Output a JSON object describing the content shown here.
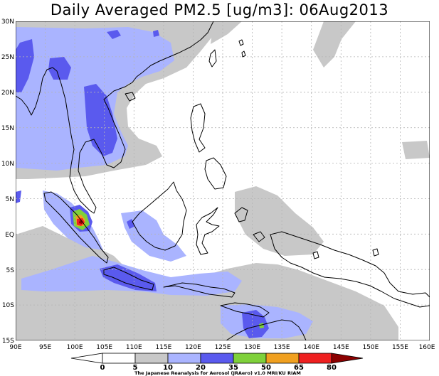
{
  "title": "Daily Averaged PM2.5 [ug/m3]: 06Aug2013",
  "credit": "The Japanese Reanalysis for Aerosol (JRAero) v1.0 MRI/KU RIAM",
  "lat_labels": [
    "30N",
    "25N",
    "20N",
    "15N",
    "10N",
    "5N",
    "EQ",
    "5S",
    "10S",
    "15S"
  ],
  "lon_labels": [
    "90E",
    "95E",
    "100E",
    "105E",
    "110E",
    "115E",
    "120E",
    "125E",
    "130E",
    "135E",
    "140E",
    "145E",
    "150E",
    "155E",
    "160E"
  ],
  "colorbar": {
    "levels": [
      "0",
      "5",
      "10",
      "20",
      "35",
      "50",
      "65",
      "80"
    ],
    "colors": [
      "#ffffff",
      "#ffffff",
      "#c8c8c8",
      "#aab4ff",
      "#5a5aee",
      "#7fd13b",
      "#f0a020",
      "#ee2020",
      "#8b0000"
    ]
  },
  "colors": {
    "land_line": "#000000",
    "grid": "#b4b4b4",
    "level_5_10": "#c8c8c8",
    "level_10_20": "#aab4ff",
    "level_20_35": "#5a5aee",
    "level_35_50": "#7fd13b",
    "level_50_65": "#f0a020",
    "level_65_80": "#ee2020",
    "level_80_plus": "#8b0000"
  },
  "map_extent": {
    "lon_min": 90,
    "lon_max": 160,
    "lat_min": -15,
    "lat_max": 30
  }
}
